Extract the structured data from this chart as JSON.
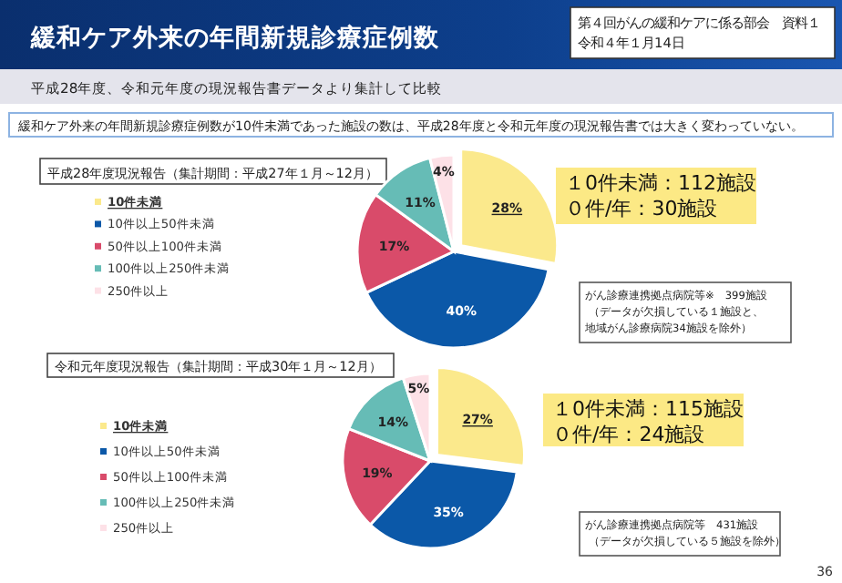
{
  "chart_data": [
    {
      "type": "pie",
      "title": "平成28年度現況報告（集計期間：平成27年１月～12月）",
      "categories": [
        "10件未満",
        "10件以上50件未満",
        "50件以上100件未満",
        "100件以上250件未満",
        "250件以上"
      ],
      "values": [
        28,
        40,
        17,
        11,
        4
      ],
      "value_labels": [
        "28%",
        "40%",
        "17%",
        "11%",
        "4%"
      ],
      "colors": [
        "#fbe98c",
        "#0b58a8",
        "#d94b6a",
        "#66bcb6",
        "#fde1e7"
      ],
      "legend": "left",
      "annotations": [
        "緩和ケア外来の年間新規診療症例数",
        "第４回がんの緩和ケアに係る部会　資料１",
        "令和４年１月14日",
        "平成28年度、令和元年度の現況報告書データより集計して比較",
        "緩和ケア外来の年間新規診療症例数が10件未満であった施設の数は、平成28年度と令和元年度の現況報告書では大きく変わっていない。",
        "１0件未満：112施設",
        "０件/年：30施設",
        "がん診療連携拠点病院等※　399施設",
        "（データが欠損している１施設と、",
        "地域がん診療病院34施設を除外）"
      ]
    },
    {
      "type": "pie",
      "title": "令和元年度現況報告（集計期間：平成30年１月～12月）",
      "categories": [
        "10件未満",
        "10件以上50件未満",
        "50件以上100件未満",
        "100件以上250件未満",
        "250件以上"
      ],
      "values": [
        27,
        35,
        19,
        14,
        5
      ],
      "value_labels": [
        "27%",
        "35%",
        "19%",
        "14%",
        "5%"
      ],
      "colors": [
        "#fbe98c",
        "#0b58a8",
        "#d94b6a",
        "#66bcb6",
        "#fde1e7"
      ],
      "legend": "left",
      "annotations": [
        "１0件未満：115施設",
        "０件/年：24施設",
        "がん診療連携拠点病院等　431施設",
        "（データが欠損している５施設を除外）",
        "36"
      ]
    }
  ]
}
